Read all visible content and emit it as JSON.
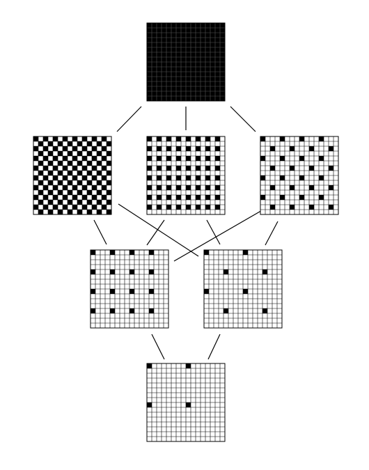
{
  "diagram": {
    "colors": {
      "filled": "#000000",
      "empty": "#ffffff",
      "grid": "#000000",
      "edge": "#000000"
    },
    "lattices": [
      {
        "id": "top",
        "grid_size": 16,
        "period_x": 1,
        "period_y": 1,
        "mode": "all",
        "offset": 0
      },
      {
        "id": "mid-left",
        "grid_size": 16,
        "period_x": 2,
        "period_y": 2,
        "mode": "checkerboard",
        "offset": 0
      },
      {
        "id": "mid-center",
        "grid_size": 16,
        "period_x": 2,
        "period_y": 2,
        "mode": "row-offset",
        "offset": 0
      },
      {
        "id": "mid-right",
        "grid_size": 16,
        "period_x": 4,
        "period_y": 4,
        "mode": "checkerboard",
        "offset": 0
      },
      {
        "id": "low-left",
        "grid_size": 16,
        "period_x": 4,
        "period_y": 4,
        "mode": "rect",
        "offset": 0
      },
      {
        "id": "low-right",
        "grid_size": 16,
        "period_x": 8,
        "period_y": 8,
        "mode": "checkerboard",
        "offset": 0
      },
      {
        "id": "bottom",
        "grid_size": 16,
        "period_x": 8,
        "period_y": 8,
        "mode": "checkerboard-sparse",
        "offset": 0
      }
    ],
    "edges": [
      [
        "top",
        "mid-left"
      ],
      [
        "top",
        "mid-center"
      ],
      [
        "top",
        "mid-right"
      ],
      [
        "mid-left",
        "low-left"
      ],
      [
        "mid-left",
        "low-right"
      ],
      [
        "mid-center",
        "low-left"
      ],
      [
        "mid-center",
        "low-right"
      ],
      [
        "mid-right",
        "low-left"
      ],
      [
        "mid-right",
        "low-right"
      ],
      [
        "low-left",
        "bottom"
      ],
      [
        "low-right",
        "bottom"
      ]
    ]
  }
}
